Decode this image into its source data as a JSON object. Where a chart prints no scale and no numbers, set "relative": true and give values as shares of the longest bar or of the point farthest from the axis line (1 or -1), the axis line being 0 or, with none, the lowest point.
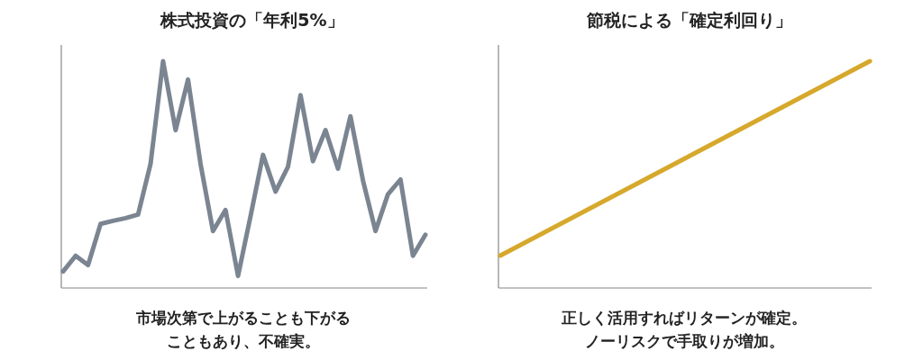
{
  "chart_data": [
    {
      "type": "line",
      "title": "株式投資の「年利5%」",
      "relative": true,
      "categories": [
        null,
        null,
        null,
        null,
        null,
        null,
        null,
        null,
        null,
        null,
        null,
        null,
        null,
        null,
        null,
        null,
        null,
        null,
        null,
        null,
        null,
        null,
        null,
        null,
        null,
        null,
        null,
        null,
        null,
        null
      ],
      "series": [
        {
          "color": "#7b8592",
          "values": [
            0.073,
            0.142,
            0.101,
            0.283,
            0.296,
            0.308,
            0.324,
            0.547,
            1,
            0.696,
            0.919,
            0.547,
            0.251,
            0.344,
            0.053,
            0.316,
            0.587,
            0.425,
            0.534,
            0.85,
            0.559,
            0.696,
            0.526,
            0.757,
            0.474,
            0.251,
            0.413,
            0.478,
            0.142,
            0.235
          ]
        }
      ],
      "annotations": [
        "市場次第で上がることも下がることもあり、不確実。"
      ]
    },
    {
      "type": "line",
      "title": "節税による「確定利回り」",
      "relative": true,
      "categories": [
        null,
        null
      ],
      "series": [
        {
          "color": "#d6a82c",
          "values": [
            0.143,
            1
          ]
        }
      ],
      "annotations": [
        "正しく活用すればリターンが確定。ノーリスクで手取りが増加。"
      ]
    }
  ]
}
